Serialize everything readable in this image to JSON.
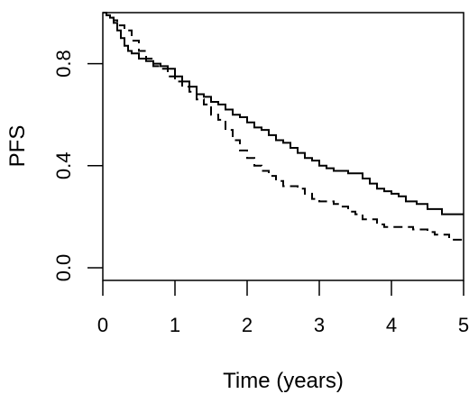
{
  "chart_data": {
    "type": "line",
    "title": "",
    "xlabel": "Time (years)",
    "ylabel": "PFS",
    "xlim": [
      0,
      5
    ],
    "ylim": [
      0,
      1
    ],
    "x_ticks": [
      "0",
      "1",
      "2",
      "3",
      "4",
      "5"
    ],
    "y_ticks": [
      "0.0",
      "0.4",
      "0.8"
    ],
    "grid": false,
    "legend": "none",
    "series": [
      {
        "style": "solid",
        "points": [
          [
            0,
            1.0
          ],
          [
            0.05,
            0.99
          ],
          [
            0.1,
            0.98
          ],
          [
            0.15,
            0.96
          ],
          [
            0.2,
            0.93
          ],
          [
            0.25,
            0.9
          ],
          [
            0.3,
            0.87
          ],
          [
            0.35,
            0.85
          ],
          [
            0.4,
            0.84
          ],
          [
            0.5,
            0.82
          ],
          [
            0.6,
            0.81
          ],
          [
            0.7,
            0.8
          ],
          [
            0.8,
            0.79
          ],
          [
            0.9,
            0.78
          ],
          [
            1.0,
            0.75
          ],
          [
            1.1,
            0.73
          ],
          [
            1.2,
            0.71
          ],
          [
            1.3,
            0.68
          ],
          [
            1.4,
            0.67
          ],
          [
            1.5,
            0.65
          ],
          [
            1.6,
            0.64
          ],
          [
            1.7,
            0.62
          ],
          [
            1.8,
            0.6
          ],
          [
            1.9,
            0.59
          ],
          [
            2.0,
            0.57
          ],
          [
            2.1,
            0.55
          ],
          [
            2.2,
            0.54
          ],
          [
            2.3,
            0.52
          ],
          [
            2.4,
            0.5
          ],
          [
            2.5,
            0.49
          ],
          [
            2.6,
            0.47
          ],
          [
            2.7,
            0.45
          ],
          [
            2.8,
            0.43
          ],
          [
            2.9,
            0.42
          ],
          [
            3.0,
            0.4
          ],
          [
            3.1,
            0.39
          ],
          [
            3.2,
            0.38
          ],
          [
            3.4,
            0.37
          ],
          [
            3.6,
            0.35
          ],
          [
            3.7,
            0.33
          ],
          [
            3.8,
            0.31
          ],
          [
            3.9,
            0.3
          ],
          [
            4.0,
            0.29
          ],
          [
            4.1,
            0.28
          ],
          [
            4.2,
            0.26
          ],
          [
            4.35,
            0.25
          ],
          [
            4.5,
            0.23
          ],
          [
            4.7,
            0.21
          ],
          [
            5.0,
            0.21
          ]
        ]
      },
      {
        "style": "dashed",
        "points": [
          [
            0,
            1.0
          ],
          [
            0.05,
            0.99
          ],
          [
            0.1,
            0.98
          ],
          [
            0.15,
            0.97
          ],
          [
            0.2,
            0.95
          ],
          [
            0.3,
            0.93
          ],
          [
            0.4,
            0.89
          ],
          [
            0.5,
            0.85
          ],
          [
            0.6,
            0.82
          ],
          [
            0.7,
            0.79
          ],
          [
            0.8,
            0.78
          ],
          [
            0.9,
            0.75
          ],
          [
            1.0,
            0.73
          ],
          [
            1.1,
            0.71
          ],
          [
            1.2,
            0.69
          ],
          [
            1.3,
            0.66
          ],
          [
            1.4,
            0.64
          ],
          [
            1.5,
            0.6
          ],
          [
            1.6,
            0.58
          ],
          [
            1.7,
            0.54
          ],
          [
            1.8,
            0.5
          ],
          [
            1.9,
            0.46
          ],
          [
            2.0,
            0.43
          ],
          [
            2.1,
            0.4
          ],
          [
            2.2,
            0.38
          ],
          [
            2.3,
            0.36
          ],
          [
            2.4,
            0.34
          ],
          [
            2.5,
            0.32
          ],
          [
            2.7,
            0.31
          ],
          [
            2.8,
            0.29
          ],
          [
            2.9,
            0.27
          ],
          [
            3.0,
            0.26
          ],
          [
            3.2,
            0.25
          ],
          [
            3.3,
            0.24
          ],
          [
            3.4,
            0.22
          ],
          [
            3.5,
            0.21
          ],
          [
            3.6,
            0.19
          ],
          [
            3.8,
            0.17
          ],
          [
            3.9,
            0.16
          ],
          [
            4.0,
            0.16
          ],
          [
            4.3,
            0.15
          ],
          [
            4.5,
            0.14
          ],
          [
            4.6,
            0.13
          ],
          [
            4.8,
            0.11
          ],
          [
            5.0,
            0.1
          ]
        ]
      }
    ]
  }
}
